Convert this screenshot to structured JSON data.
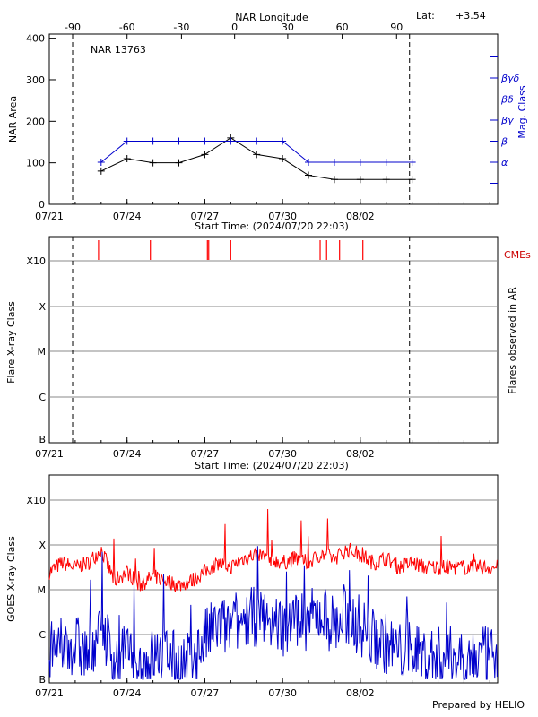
{
  "header": {
    "top_axis_label": "NAR Longitude",
    "lat_label": "Lat:",
    "lat_value": "+3.54",
    "footer": "Prepared by HELIO"
  },
  "start_time_label": "Start Time: (2024/07/20 22:03)",
  "colors": {
    "black": "#000000",
    "blue": "#0000cc",
    "red": "#ff0000",
    "grid": "#888888"
  },
  "chart_data": [
    {
      "type": "line",
      "panel": "nar",
      "title": "NAR 13763",
      "ylabel": "NAR Area",
      "right_label": "Mag. Class",
      "xlabel": "Start Time: (2024/07/20 22:03)",
      "xlim": [
        0,
        17.3
      ],
      "ylim": [
        0,
        410
      ],
      "x_ticks": [
        0,
        3,
        6,
        9,
        12
      ],
      "x_tick_labels": [
        "07/21",
        "07/24",
        "07/27",
        "07/30",
        "08/02"
      ],
      "y_ticks": [
        0,
        100,
        200,
        300,
        400
      ],
      "top_ticks": [
        -90,
        -60,
        -30,
        0,
        30,
        60,
        90
      ],
      "top_tick_x": [
        0.9,
        3.0,
        5.1,
        7.15,
        9.2,
        11.3,
        13.4
      ],
      "right_classes": [
        "α",
        "β",
        "βγ",
        "βδ",
        "βγδ"
      ],
      "right_class_levels": [
        2,
        3,
        4,
        5,
        6
      ],
      "dashed_x": [
        0.9,
        13.9
      ],
      "series": [
        {
          "name": "NAR Area",
          "color": "#000000",
          "x": [
            2,
            3,
            4,
            5,
            6,
            7,
            8,
            9,
            10,
            11,
            12,
            13,
            14
          ],
          "y": [
            80,
            110,
            100,
            100,
            120,
            160,
            120,
            110,
            70,
            60,
            60,
            60,
            60
          ]
        },
        {
          "name": "Mag. Class",
          "color": "#0000cc",
          "x": [
            2,
            3,
            4,
            5,
            6,
            7,
            8,
            9,
            10,
            11,
            12,
            13,
            14
          ],
          "y": [
            2,
            3,
            3,
            3,
            3,
            3,
            3,
            3,
            2,
            2,
            2,
            2,
            2
          ]
        }
      ]
    },
    {
      "type": "bar",
      "panel": "flares",
      "ylabel": "Flare X-ray Class",
      "right_label": "Flares observed in AR",
      "xlabel": "Start Time: (2024/07/20 22:03)",
      "legend": "CMEs",
      "xlim": [
        0,
        17.3
      ],
      "x_ticks": [
        0,
        3,
        6,
        9,
        12
      ],
      "x_tick_labels": [
        "07/21",
        "07/24",
        "07/27",
        "07/30",
        "08/02"
      ],
      "y_classes": [
        "B",
        "C",
        "M",
        "X",
        "X10"
      ],
      "dashed_x": [
        0.9,
        13.9
      ],
      "cmes": [
        1.9,
        3.9,
        6.1,
        6.15,
        7.0,
        10.45,
        10.7,
        11.2,
        12.1
      ]
    },
    {
      "type": "line",
      "panel": "goes",
      "ylabel": "GOES X-ray Class",
      "xlim": [
        0,
        17.3
      ],
      "x_ticks": [
        0,
        3,
        6,
        9,
        12
      ],
      "x_tick_labels": [
        "07/21",
        "07/24",
        "07/27",
        "07/30",
        "08/02"
      ],
      "y_classes": [
        "B",
        "C",
        "M",
        "X",
        "X10"
      ],
      "series": [
        {
          "name": "GOES long channel",
          "color": "#ff0000",
          "x": [
            0,
            0.5,
            1,
            1.5,
            2,
            2.5,
            3,
            3.5,
            4,
            4.5,
            5,
            5.5,
            6,
            6.5,
            7,
            7.5,
            8,
            8.5,
            9,
            9.5,
            10,
            10.5,
            11,
            11.5,
            12,
            12.5,
            13,
            13.5,
            14,
            14.5
          ],
          "y": [
            2.4,
            2.6,
            2.5,
            2.6,
            2.9,
            2.2,
            2.4,
            2.1,
            2.3,
            2.2,
            2.1,
            2.2,
            2.4,
            2.6,
            2.5,
            2.7,
            2.8,
            2.7,
            2.6,
            2.7,
            2.6,
            2.8,
            2.7,
            2.9,
            2.8,
            2.6,
            2.7,
            2.5,
            2.6,
            2.5
          ]
        },
        {
          "name": "GOES short channel",
          "color": "#0000cc",
          "x": [
            0,
            0.5,
            1,
            1.5,
            2,
            2.5,
            3,
            3.5,
            4,
            4.5,
            5,
            5.5,
            6,
            6.5,
            7,
            7.5,
            8,
            8.5,
            9,
            9.5,
            10,
            10.5,
            11,
            11.5,
            12,
            12.5,
            13,
            13.5,
            14,
            14.5
          ],
          "y": [
            0.6,
            0.7,
            0.8,
            0.5,
            1.3,
            0.4,
            0.6,
            0.3,
            0.5,
            0.6,
            0.3,
            0.4,
            0.9,
            1.2,
            1.1,
            1.3,
            1.4,
            1.3,
            1.2,
            1.4,
            1.3,
            1.5,
            1.2,
            1.4,
            1.2,
            0.9,
            0.8,
            0.6,
            0.7,
            0.5
          ]
        }
      ]
    }
  ]
}
